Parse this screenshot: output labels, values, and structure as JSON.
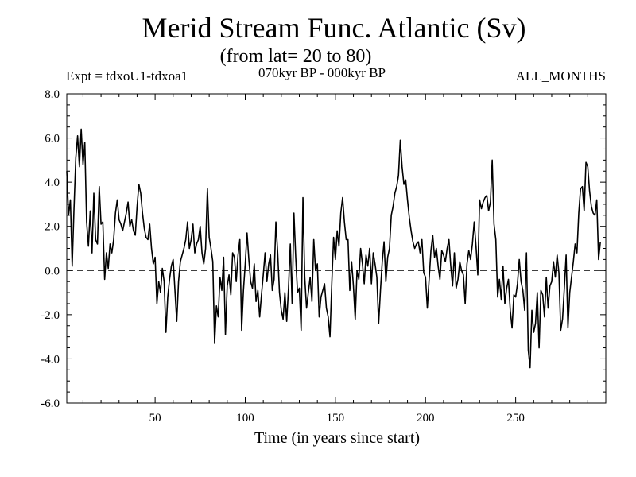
{
  "chart_data": {
    "type": "line",
    "title": "Merid Stream Func. Atlantic (Sv)",
    "subtitle": "(from lat= 20 to 80)",
    "experiment": "Expt = tdxoU1-tdxoa1",
    "period": "070kyr BP - 000kyr BP",
    "months": "ALL_MONTHS",
    "xlabel": "Time (in years since start)",
    "ylabel": "",
    "xlim": [
      1,
      300
    ],
    "ylim": [
      -6,
      8
    ],
    "xticks": [
      50,
      100,
      150,
      200,
      250
    ],
    "yticks": [
      -6,
      -4,
      -2,
      0,
      2,
      4,
      6,
      8
    ],
    "ytick_labels": [
      "-6.0",
      "-4.0",
      "-2.0",
      "0.0",
      "2.0",
      "4.0",
      "6.0",
      "8.0"
    ],
    "reference_line": 0,
    "x_start": 1,
    "x_step": 1,
    "values": [
      4.5,
      2.5,
      3.2,
      0.2,
      2.8,
      5.1,
      6.1,
      4.7,
      6.4,
      4.8,
      5.8,
      2.2,
      1.1,
      2.7,
      0.8,
      3.5,
      1.4,
      1.2,
      3.8,
      2.1,
      2.2,
      -0.4,
      0.8,
      0.1,
      1.2,
      0.8,
      1.4,
      2.6,
      3.2,
      2.3,
      2.1,
      1.8,
      2.2,
      2.6,
      3.1,
      2.0,
      2.3,
      1.8,
      1.6,
      2.9,
      3.9,
      3.5,
      2.6,
      1.9,
      1.5,
      1.4,
      2.1,
      1.0,
      0.3,
      0.6,
      -1.5,
      -0.5,
      -1.0,
      0.1,
      -0.5,
      -2.8,
      -1.2,
      -0.4,
      0.2,
      0.5,
      -0.9,
      -2.3,
      -0.5,
      0.4,
      0.7,
      1.0,
      1.4,
      2.2,
      1.0,
      1.4,
      2.1,
      0.8,
      1.2,
      1.4,
      2.0,
      0.8,
      0.3,
      1.0,
      3.7,
      1.5,
      1.0,
      0.4,
      -3.3,
      -1.6,
      -2.1,
      -0.3,
      -0.9,
      0.6,
      -2.9,
      -0.7,
      -0.2,
      -1.1,
      0.8,
      0.6,
      -0.5,
      0.7,
      1.4,
      -2.7,
      -0.9,
      0.3,
      1.7,
      0.5,
      -0.5,
      -0.8,
      0.3,
      -1.4,
      -0.9,
      -2.1,
      -1.1,
      -0.2,
      0.8,
      -0.5,
      0.3,
      0.7,
      -0.9,
      -0.4,
      2.2,
      0.8,
      -1.0,
      -1.8,
      -2.2,
      -1.0,
      -2.3,
      -0.8,
      1.2,
      -1.5,
      2.6,
      0.6,
      -1.0,
      -0.8,
      -2.7,
      3.3,
      -0.3,
      -1.7,
      -1.0,
      -0.3,
      -1.4,
      1.4,
      0.0,
      0.3,
      -2.1,
      -1.2,
      -0.9,
      -0.6,
      -1.7,
      -2.1,
      -3.0,
      -0.6,
      1.5,
      0.5,
      1.8,
      1.1,
      2.6,
      3.3,
      2.2,
      1.4,
      1.4,
      -0.9,
      0.4,
      -0.7,
      -2.2,
      0.0,
      -0.4,
      1.0,
      0.3,
      -0.6,
      0.7,
      0.2,
      1.0,
      -0.6,
      0.8,
      0.3,
      -0.3,
      -2.4,
      -0.9,
      0.4,
      1.3,
      -0.5,
      0.6,
      1.0,
      2.5,
      2.9,
      3.5,
      3.8,
      4.3,
      5.9,
      4.7,
      3.9,
      4.1,
      3.2,
      2.4,
      1.8,
      1.3,
      1.0,
      1.2,
      1.3,
      0.8,
      1.4,
      -0.1,
      -0.3,
      -1.7,
      -0.4,
      0.9,
      1.6,
      0.6,
      1.0,
      0.2,
      -0.4,
      0.9,
      0.7,
      0.4,
      1.0,
      1.4,
      0.2,
      -0.7,
      0.8,
      -0.8,
      -0.4,
      0.4,
      0.0,
      -0.2,
      -1.5,
      0.3,
      0.9,
      0.5,
      1.2,
      2.2,
      1.1,
      -0.2,
      3.2,
      2.8,
      3.1,
      3.3,
      3.4,
      2.7,
      3.1,
      5.0,
      2.1,
      1.4,
      -1.2,
      -0.4,
      -1.3,
      0.2,
      -1.5,
      -0.8,
      -0.4,
      -1.8,
      -2.6,
      -1.1,
      -1.2,
      -0.6,
      0.5,
      -0.5,
      -0.9,
      -1.8,
      0.8,
      -3.6,
      -4.4,
      -1.8,
      -2.8,
      -2.4,
      -1.0,
      -3.5,
      -0.9,
      -1.1,
      -2.1,
      -0.3,
      -1.7,
      -0.7,
      -0.5,
      0.4,
      -0.3,
      0.7,
      -0.1,
      -2.7,
      -2.2,
      -0.8,
      0.7,
      -2.6,
      -1.0,
      -0.3,
      0.4,
      1.2,
      0.8,
      2.6,
      3.7,
      3.8,
      2.7,
      4.9,
      4.7,
      3.6,
      2.9,
      2.6,
      2.5,
      3.2,
      0.5,
      1.3
    ]
  }
}
